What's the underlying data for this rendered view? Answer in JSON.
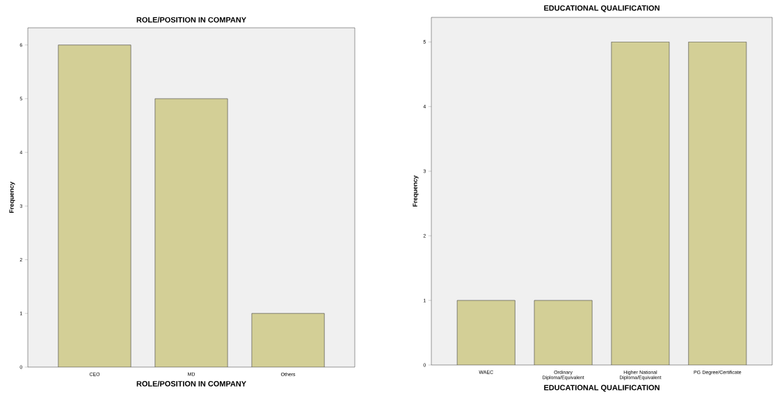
{
  "chart_data": [
    {
      "type": "bar",
      "title": "ROLE/POSITION IN COMPANY",
      "xlabel": "ROLE/POSITION IN COMPANY",
      "ylabel": "Frequency",
      "categories": [
        "CEO",
        "MD",
        "Others"
      ],
      "values": [
        6,
        5,
        1
      ],
      "color": "#d3cf96",
      "ylim": [
        0,
        6.32
      ],
      "yticks": [
        0,
        1,
        2,
        3,
        4,
        5,
        6
      ]
    },
    {
      "type": "bar",
      "title": "EDUCATIONAL QUALIFICATION",
      "xlabel": "EDUCATIONAL QUALIFICATION",
      "ylabel": "Frequency",
      "categories": [
        "WAEC",
        "Ordinary Diploma/Equivalent",
        "Higher National Diploma/Equivalent",
        "PG Degree/Certificate"
      ],
      "values": [
        1,
        1,
        5,
        5
      ],
      "color": "#d3cf96",
      "ylim": [
        0,
        5.38
      ],
      "yticks": [
        0,
        1,
        2,
        3,
        4,
        5
      ]
    }
  ]
}
